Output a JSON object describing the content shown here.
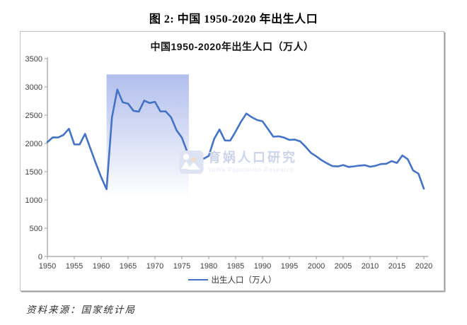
{
  "page": {
    "doc_title": "图 2: 中国 1950-2020 年出生人口",
    "source_note": "资料来源：国家统计局"
  },
  "watermark": {
    "name": "育娲人口研究",
    "subtitle": "YuWa Population Research"
  },
  "legend": {
    "label": "出生人口（万人）"
  },
  "chart_data": {
    "type": "line",
    "title": "中国1950-2020年出生人口（万人）",
    "xlabel": "",
    "ylabel": "",
    "xlim": [
      1950,
      2020
    ],
    "ylim": [
      0,
      3500
    ],
    "grid": false,
    "legend_position": "bottom",
    "x_ticks": [
      1950,
      1955,
      1960,
      1965,
      1970,
      1975,
      1980,
      1985,
      1990,
      1995,
      2000,
      2005,
      2010,
      2015,
      2020
    ],
    "y_ticks": [
      0,
      500,
      1000,
      1500,
      2000,
      2500,
      3000,
      3500
    ],
    "highlight_band": {
      "x_start": 1961,
      "x_end": 1976.3,
      "y_top": 3220,
      "color_top": "#b1beec"
    },
    "x": [
      1950,
      1951,
      1952,
      1953,
      1954,
      1955,
      1956,
      1957,
      1958,
      1959,
      1960,
      1961,
      1962,
      1963,
      1964,
      1965,
      1966,
      1967,
      1968,
      1969,
      1970,
      1971,
      1972,
      1973,
      1974,
      1975,
      1976,
      1977,
      1978,
      1979,
      1980,
      1981,
      1982,
      1983,
      1984,
      1985,
      1986,
      1987,
      1988,
      1989,
      1990,
      1991,
      1992,
      1993,
      1994,
      1995,
      1996,
      1997,
      1998,
      1999,
      2000,
      2001,
      2002,
      2003,
      2004,
      2005,
      2006,
      2007,
      2008,
      2009,
      2010,
      2011,
      2012,
      2013,
      2014,
      2015,
      2016,
      2017,
      2018,
      2019,
      2020
    ],
    "series": [
      {
        "name": "出生人口（万人）",
        "values": [
          2023,
          2107,
          2105,
          2151,
          2260,
          1984,
          1982,
          2169,
          1909,
          1650,
          1402,
          1190,
          2460,
          2954,
          2729,
          2704,
          2577,
          2563,
          2757,
          2715,
          2736,
          2567,
          2566,
          2463,
          2235,
          2102,
          1853,
          1789,
          1745,
          1727,
          1779,
          2078,
          2247,
          2052,
          2050,
          2211,
          2384,
          2529,
          2464,
          2414,
          2391,
          2258,
          2119,
          2126,
          2104,
          2063,
          2067,
          2038,
          1942,
          1834,
          1771,
          1702,
          1647,
          1599,
          1593,
          1617,
          1584,
          1594,
          1608,
          1615,
          1588,
          1604,
          1635,
          1640,
          1687,
          1655,
          1786,
          1723,
          1523,
          1465,
          1200
        ]
      }
    ],
    "colors": {
      "line": "#4472C4",
      "axis": "#9d9d9d",
      "tick_label": "#404040"
    }
  }
}
